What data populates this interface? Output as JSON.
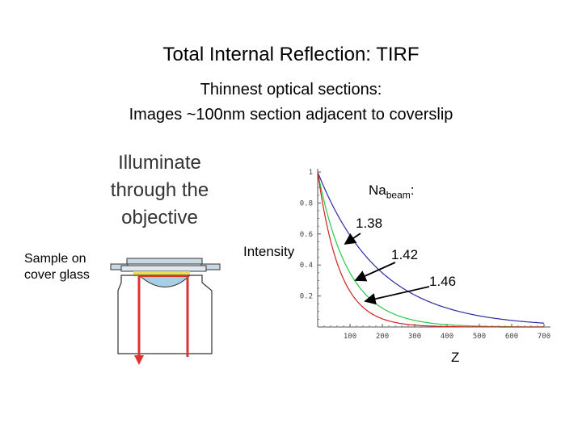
{
  "title": "Total Internal Reflection: TIRF",
  "subtitle_line1": "Thinnest optical sections:",
  "subtitle_line2": "Images ~100nm section adjacent to coverslip",
  "illuminate_text": [
    "Illuminate",
    "through the",
    "objective"
  ],
  "sample_text": [
    "Sample on",
    "cover glass"
  ],
  "legend": {
    "prefix": "Na",
    "subscript": "beam",
    "suffix": ":"
  },
  "chart_data": {
    "type": "line",
    "ylabel": "Intensity",
    "xlabel": "Z",
    "xlim": [
      0,
      700
    ],
    "ylim": [
      0,
      1
    ],
    "x_ticks": [
      "100",
      "200",
      "300",
      "400",
      "500",
      "600",
      "700"
    ],
    "y_ticks": [
      "0.2",
      "0.4",
      "0.6",
      "0.8",
      "1"
    ],
    "series": [
      {
        "name": "1.38",
        "color": "#2a2aa0",
        "decay_length_nm": 190
      },
      {
        "name": "1.42",
        "color": "#22cc44",
        "decay_length_nm": 95
      },
      {
        "name": "1.46",
        "color": "#cc2222",
        "decay_length_nm": 68
      }
    ]
  },
  "colors": {
    "beam": "#dd3333",
    "glass": "#d8e6f0",
    "sample": "#eedd55"
  }
}
